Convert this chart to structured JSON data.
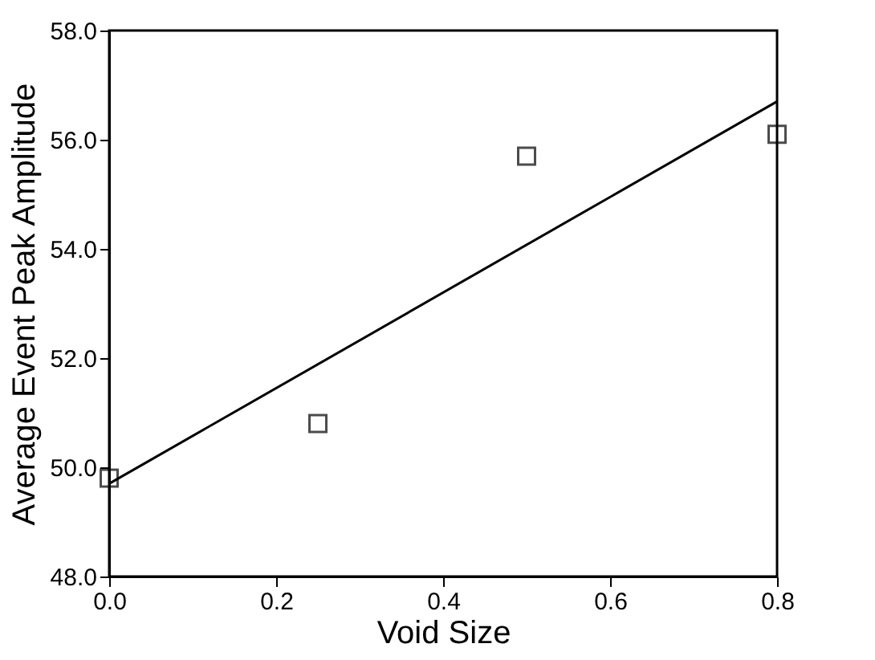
{
  "chart_data": {
    "type": "scatter",
    "xlabel": "Void Size",
    "ylabel": "Average Event Peak Amplitude",
    "xlim": [
      0,
      0.8
    ],
    "xticks": [
      {
        "value": 0,
        "label": "0.0"
      },
      0.2,
      0.4,
      0.6,
      0.8
    ],
    "ylim": [
      48,
      58
    ],
    "yticks": [
      {
        "value": 48,
        "label": "48.0"
      },
      {
        "value": 50,
        "label": "50.0"
      },
      {
        "value": 52,
        "label": "52.0"
      },
      {
        "value": 54,
        "label": "54.0"
      },
      {
        "value": 56,
        "label": "56.0"
      },
      {
        "value": 58,
        "label": "58.0"
      }
    ],
    "grid": false,
    "marker": "square",
    "series": [
      {
        "color": "#000000",
        "x": [
          0,
          0.25,
          0.5,
          0.8
        ],
        "values": [
          49.8,
          50.8,
          55.7,
          56.1
        ]
      },
      {
        "type": "line",
        "color": "#000000",
        "x": [
          0,
          0.8
        ],
        "values": [
          49.7,
          56.7
        ],
        "marker": "none"
      }
    ]
  }
}
